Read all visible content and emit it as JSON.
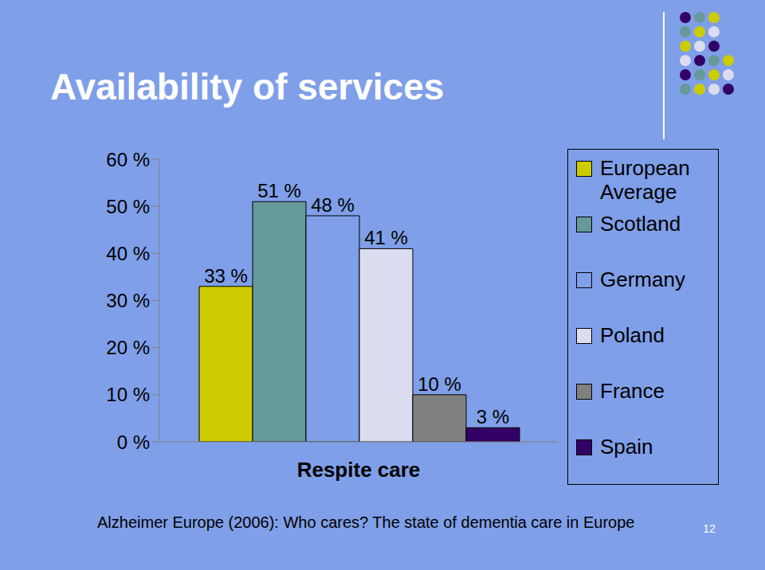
{
  "chart_data": {
    "type": "bar",
    "title": "Availability of services",
    "categories": [
      "Respite care"
    ],
    "series": [
      {
        "name": "European Average",
        "color": "#cccc00",
        "values": [
          33
        ],
        "value_labels": [
          "33 %"
        ]
      },
      {
        "name": "Scotland",
        "color": "#669999",
        "values": [
          51
        ],
        "value_labels": [
          "51 %"
        ]
      },
      {
        "name": "Germany",
        "color": "#7f9fe8",
        "values": [
          48
        ],
        "value_labels": [
          "48 %"
        ]
      },
      {
        "name": "Poland",
        "color": "#dcdcf0",
        "values": [
          41
        ],
        "value_labels": [
          "41 %"
        ]
      },
      {
        "name": "France",
        "color": "#808080",
        "values": [
          10
        ],
        "value_labels": [
          "10 %"
        ]
      },
      {
        "name": "Spain",
        "color": "#330066",
        "values": [
          3
        ],
        "value_labels": [
          "3 %"
        ]
      }
    ],
    "ylim": [
      0,
      60
    ],
    "yticks": [
      {
        "value": 0,
        "label": "0 %"
      },
      {
        "value": 10,
        "label": "10 %"
      },
      {
        "value": 20,
        "label": "20 %"
      },
      {
        "value": 30,
        "label": "30 %"
      },
      {
        "value": 40,
        "label": "40 %"
      },
      {
        "value": 50,
        "label": "50 %"
      },
      {
        "value": 60,
        "label": "60 %"
      }
    ],
    "grid": false,
    "legend": "right",
    "data_labels": true,
    "annotations": [
      "Alzheimer Europe (2006): Who cares? The state of dementia care in Europe",
      "12"
    ]
  }
}
